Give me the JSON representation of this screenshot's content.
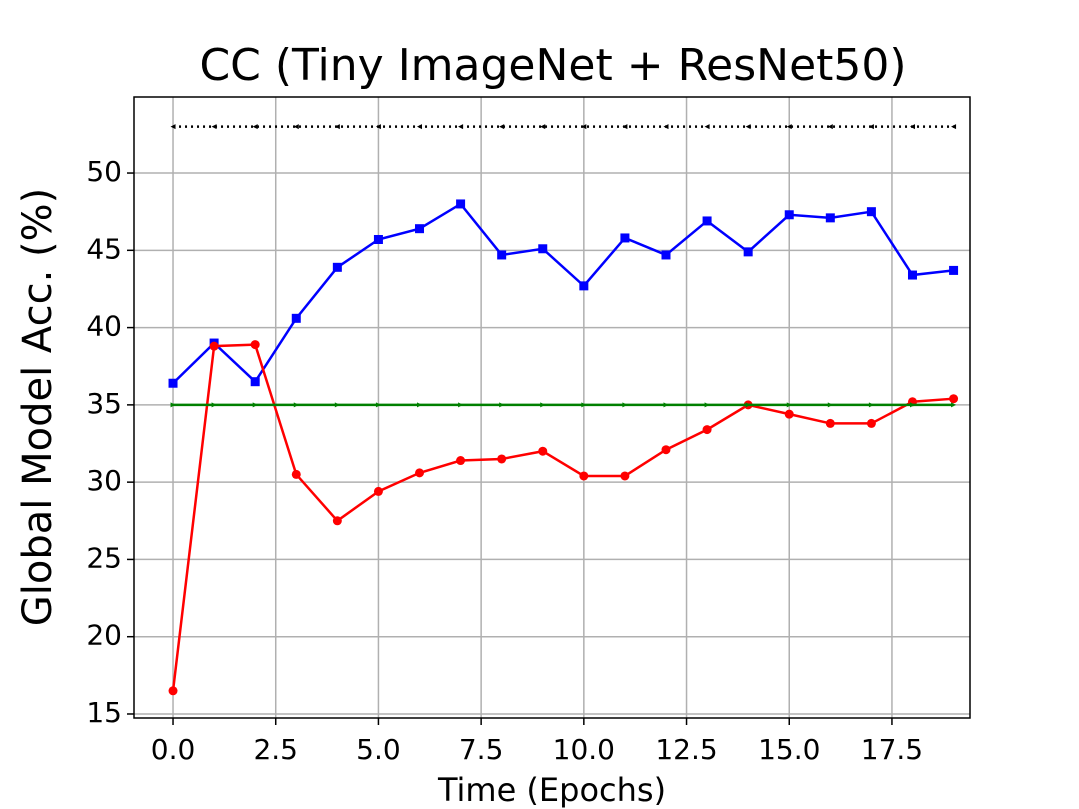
{
  "chart_data": {
    "type": "line",
    "title": "CC (Tiny ImageNet + ResNet50)",
    "xlabel": "Time (Epochs)",
    "ylabel": "Global Model Acc. (%)",
    "x": [
      0,
      1,
      2,
      3,
      4,
      5,
      6,
      7,
      8,
      9,
      10,
      11,
      12,
      13,
      14,
      15,
      16,
      17,
      18,
      19
    ],
    "series": [
      {
        "color": "#0000ff",
        "marker": "square",
        "linestyle": "solid",
        "values": [
          36.4,
          39.0,
          36.5,
          40.6,
          43.9,
          45.7,
          46.4,
          48.0,
          44.7,
          45.1,
          42.7,
          45.8,
          44.7,
          46.9,
          44.9,
          47.3,
          47.1,
          47.5,
          43.4,
          43.7
        ]
      },
      {
        "color": "#ff0000",
        "marker": "circle",
        "linestyle": "solid",
        "values": [
          16.5,
          38.8,
          38.9,
          30.5,
          27.5,
          29.4,
          30.6,
          31.4,
          31.5,
          32.0,
          30.4,
          30.4,
          32.1,
          33.4,
          35.0,
          34.4,
          33.8,
          33.8,
          35.2,
          35.4
        ]
      },
      {
        "color": "#008000",
        "marker": "triangle-right",
        "linestyle": "solid",
        "values": [
          35,
          35,
          35,
          35,
          35,
          35,
          35,
          35,
          35,
          35,
          35,
          35,
          35,
          35,
          35,
          35,
          35,
          35,
          35,
          35
        ]
      },
      {
        "color": "#000000",
        "marker": "triangle-left",
        "linestyle": "dotted",
        "values": [
          53,
          53,
          53,
          53,
          53,
          53,
          53,
          53,
          53,
          53,
          53,
          53,
          53,
          53,
          53,
          53,
          53,
          53,
          53,
          53
        ]
      }
    ],
    "xlim": [
      -0.95,
      19.4
    ],
    "ylim": [
      14.74,
      54.92
    ],
    "xticks": [
      {
        "value": 0,
        "label": "0.0"
      },
      2.5,
      {
        "value": 5,
        "label": "5.0"
      },
      7.5,
      {
        "value": 10,
        "label": "10.0"
      },
      12.5,
      {
        "value": 15,
        "label": "15.0"
      },
      17.5
    ],
    "yticks": [
      15,
      20,
      25,
      30,
      35,
      40,
      45,
      50
    ],
    "grid": true
  }
}
